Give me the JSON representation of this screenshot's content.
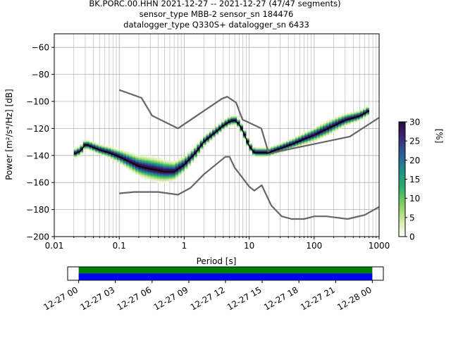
{
  "title": {
    "line1": "BK.PORC.00.HHN   2021-12-27 -- 2021-12-27  (47/47 segments)",
    "line2": "sensor_type MBB-2 sensor_sn 184476",
    "line3": "datalogger_type Q330S+ datalogger_sn 6433"
  },
  "chart_data": [
    {
      "type": "heatmap",
      "xlabel": "Period [s]",
      "ylabel": "Power [m²/s⁴/Hz] [dB]",
      "xscale": "log",
      "xlim": [
        0.01,
        1000
      ],
      "ylim": [
        -200,
        -50
      ],
      "xticks": [
        {
          "v": 0.01,
          "label": "0.01"
        },
        {
          "v": 0.1,
          "label": "0.1"
        },
        {
          "v": 1,
          "label": "1"
        },
        {
          "v": 10,
          "label": "10"
        },
        {
          "v": 100,
          "label": "100"
        },
        {
          "v": 1000,
          "label": "1000"
        }
      ],
      "yticks": [
        -60,
        -80,
        -100,
        -120,
        -140,
        -160,
        -180,
        -200
      ],
      "grid": true,
      "colorbar": {
        "label": "[%]",
        "ticks": [
          0,
          5,
          10,
          15,
          20,
          25,
          30
        ],
        "range": [
          0,
          30
        ],
        "colormap": [
          "#ffffff",
          "#cfe8a0",
          "#7fcf60",
          "#2cae6e",
          "#1f8f86",
          "#2d5e9a",
          "#3b2a78",
          "#2a0a3a"
        ]
      },
      "mode_curve": {
        "x": [
          0.02,
          0.025,
          0.03,
          0.035,
          0.05,
          0.07,
          0.1,
          0.15,
          0.2,
          0.3,
          0.5,
          0.7,
          1,
          1.5,
          2,
          3,
          4,
          5,
          6,
          7,
          8,
          10,
          12,
          15,
          20,
          30,
          50,
          70,
          100,
          150,
          200,
          300,
          500,
          700
        ],
        "y": [
          -139,
          -137,
          -132,
          -133,
          -136,
          -138,
          -141,
          -145,
          -148,
          -150,
          -152,
          -152,
          -147,
          -138,
          -130,
          -123,
          -118,
          -115,
          -114,
          -117,
          -122,
          -133,
          -138,
          -138,
          -138,
          -135,
          -131,
          -128,
          -125,
          -121,
          -118,
          -114,
          -111,
          -107
        ]
      },
      "nlnm": {
        "x": [
          0.1,
          0.17,
          0.4,
          0.8,
          1.25,
          2,
          4.3,
          5,
          6,
          10,
          12,
          15.6,
          21.9,
          31.6,
          45,
          70,
          101,
          154,
          328,
          600,
          1000
        ],
        "y": [
          -168,
          -167,
          -167,
          -169,
          -164,
          -154,
          -141,
          -141,
          -149,
          -163,
          -166,
          -162,
          -177,
          -185,
          -187,
          -187,
          -185,
          -185,
          -187,
          -184,
          -178
        ]
      },
      "nhnm": {
        "x": [
          0.1,
          0.22,
          0.32,
          0.8,
          3.8,
          4.6,
          6.3,
          7.9,
          15.4,
          20,
          354.8,
          1000
        ],
        "y": [
          -91.5,
          -97.4,
          -110.5,
          -120,
          -98,
          -96.5,
          -101,
          -113.5,
          -120,
          -138.5,
          -126,
          -112
        ]
      }
    },
    {
      "type": "timeline",
      "xlim": [
        -0.9,
        24.9
      ],
      "coverage": [
        0,
        24
      ],
      "tick_values": [
        0,
        3,
        6,
        9,
        12,
        15,
        18,
        21,
        24
      ],
      "tick_labels": [
        "12-27 00",
        "12-27 03",
        "12-27 06",
        "12-27 09",
        "12-27 12",
        "12-27 15",
        "12-27 18",
        "12-27 21",
        "12-28 00"
      ],
      "colors": {
        "top": "#008000",
        "bottom": "#0000ff"
      }
    }
  ]
}
